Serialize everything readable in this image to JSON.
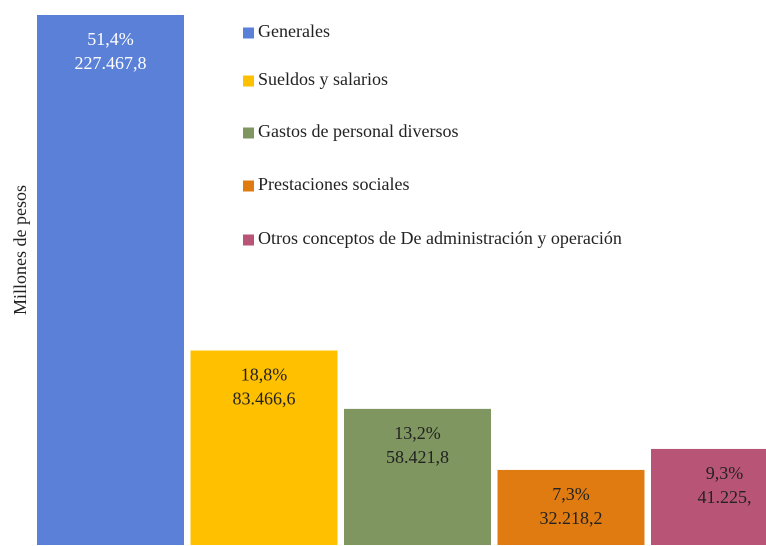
{
  "chart_data": {
    "type": "bar",
    "y_label": "Millones  de pesos",
    "series": [
      {
        "name": "Generales",
        "color": "#5a80d8",
        "values": [
          227467.8
        ],
        "value_labels": [
          "227.467,8"
        ],
        "shares": [
          51.4
        ],
        "share_labels": [
          "51,4%"
        ]
      },
      {
        "name": "Sueldos y salarios",
        "color": "#ffc000",
        "values": [
          83466.6
        ],
        "value_labels": [
          "83.466,6"
        ],
        "shares": [
          18.8
        ],
        "share_labels": [
          "18,8%"
        ]
      },
      {
        "name": "Gastos de personal diversos",
        "color": "#7f9660",
        "values": [
          58421.8
        ],
        "value_labels": [
          "58.421,8"
        ],
        "shares": [
          13.2
        ],
        "share_labels": [
          "13,2%"
        ]
      },
      {
        "name": "Prestaciones sociales",
        "color": "#e07b12",
        "values": [
          32218.2
        ],
        "value_labels": [
          "32.218,2"
        ],
        "shares": [
          7.3
        ],
        "share_labels": [
          "7,3%"
        ]
      },
      {
        "name": "Otros conceptos de De administración y operación",
        "color": "#b85576",
        "values": [
          41225
        ],
        "value_labels": [
          "41.225,"
        ],
        "shares": [
          9.3
        ],
        "share_labels": [
          "9,3%"
        ]
      }
    ]
  }
}
